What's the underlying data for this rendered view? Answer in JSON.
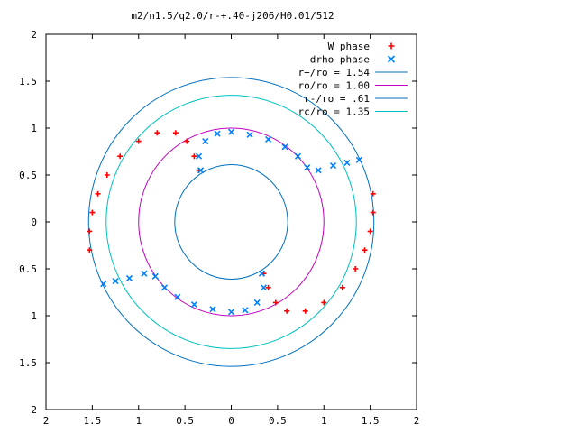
{
  "chart_data": {
    "type": "scatter",
    "title": "m2/n1.5/q2.0/r-+.40-j206/H0.01/512",
    "xlabel": "",
    "ylabel": "",
    "xlim": [
      -2,
      2
    ],
    "ylim": [
      -2,
      2
    ],
    "x_ticks": [
      -2,
      -1.5,
      -1,
      -0.5,
      0,
      0.5,
      1,
      1.5,
      2
    ],
    "y_ticks": [
      -2,
      -1.5,
      -1,
      -0.5,
      0,
      0.5,
      1,
      1.5,
      2
    ],
    "x_tick_labels": [
      "2",
      "1.5",
      "1",
      "0.5",
      "0",
      "0.5",
      "1",
      "1.5",
      "2"
    ],
    "y_tick_labels": [
      "2",
      "1.5",
      "1",
      "0.5",
      "0",
      "0.5",
      "1",
      "1.5",
      "2"
    ],
    "grid": false,
    "legend_position": "top-right",
    "series": [
      {
        "name": "W phase",
        "marker": "plus",
        "color": "#ff0000",
        "points": [
          [
            -1.53,
            -0.3
          ],
          [
            -1.53,
            -0.1
          ],
          [
            -1.5,
            0.1
          ],
          [
            -1.44,
            0.3
          ],
          [
            -1.34,
            0.5
          ],
          [
            -1.2,
            0.7
          ],
          [
            -1.0,
            0.86
          ],
          [
            -0.8,
            0.95
          ],
          [
            -0.6,
            0.95
          ],
          [
            -0.48,
            0.86
          ],
          [
            -0.4,
            0.7
          ],
          [
            -0.35,
            0.55
          ],
          [
            1.53,
            0.3
          ],
          [
            1.53,
            0.1
          ],
          [
            1.5,
            -0.1
          ],
          [
            1.44,
            -0.3
          ],
          [
            1.34,
            -0.5
          ],
          [
            1.2,
            -0.7
          ],
          [
            1.0,
            -0.86
          ],
          [
            0.8,
            -0.95
          ],
          [
            0.6,
            -0.95
          ],
          [
            0.48,
            -0.86
          ],
          [
            0.4,
            -0.7
          ],
          [
            0.35,
            -0.55
          ]
        ]
      },
      {
        "name": "drho phase",
        "marker": "cross",
        "color": "#0080ff",
        "points": [
          [
            -0.33,
            0.55
          ],
          [
            -0.35,
            0.7
          ],
          [
            -0.28,
            0.86
          ],
          [
            -0.15,
            0.94
          ],
          [
            0.0,
            0.96
          ],
          [
            0.2,
            0.93
          ],
          [
            0.4,
            0.88
          ],
          [
            0.58,
            0.8
          ],
          [
            0.72,
            0.7
          ],
          [
            0.82,
            0.58
          ],
          [
            0.94,
            0.55
          ],
          [
            1.1,
            0.6
          ],
          [
            1.25,
            0.63
          ],
          [
            1.38,
            0.66
          ],
          [
            0.33,
            -0.55
          ],
          [
            0.35,
            -0.7
          ],
          [
            0.28,
            -0.86
          ],
          [
            0.15,
            -0.94
          ],
          [
            0.0,
            -0.96
          ],
          [
            -0.2,
            -0.93
          ],
          [
            -0.4,
            -0.88
          ],
          [
            -0.58,
            -0.8
          ],
          [
            -0.72,
            -0.7
          ],
          [
            -0.82,
            -0.58
          ],
          [
            -0.94,
            -0.55
          ],
          [
            -1.1,
            -0.6
          ],
          [
            -1.25,
            -0.63
          ],
          [
            -1.38,
            -0.66
          ]
        ]
      },
      {
        "name": "r+/ro = 1.54",
        "type": "circle",
        "radius": 1.54,
        "color": "#0070c0"
      },
      {
        "name": "ro/ro = 1.00",
        "type": "circle",
        "radius": 1.0,
        "color": "#c000c0"
      },
      {
        "name": "r-/ro = .61",
        "type": "circle",
        "radius": 0.61,
        "color": "#0070c0"
      },
      {
        "name": "rc/ro = 1.35",
        "type": "circle",
        "radius": 1.35,
        "color": "#00c0c0"
      }
    ]
  }
}
